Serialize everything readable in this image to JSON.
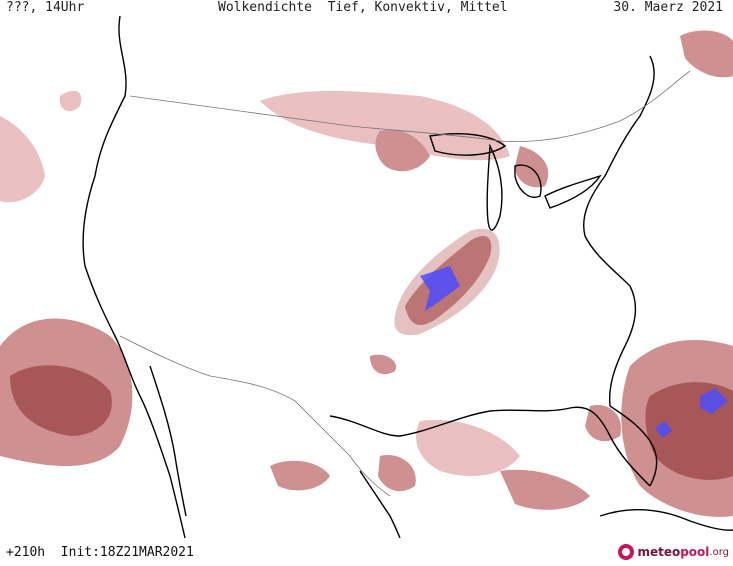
{
  "header": {
    "left": "???, 14Uhr",
    "center": "Wolkendichte  Tief, Konvektiv, Mittel",
    "right": "30. Maerz 2021"
  },
  "footer": {
    "run_info": "+210h  Init:18Z21MAR2021",
    "logo_part1": "meteo",
    "logo_part2": "pool",
    "logo_part3": ".org"
  },
  "colors": {
    "cloud_light": "#e8b9b9",
    "cloud_mid": "#c98484",
    "cloud_dark": "#9e4545",
    "convective": "#3a3aff",
    "coast": "#000000",
    "border": "#777777"
  }
}
